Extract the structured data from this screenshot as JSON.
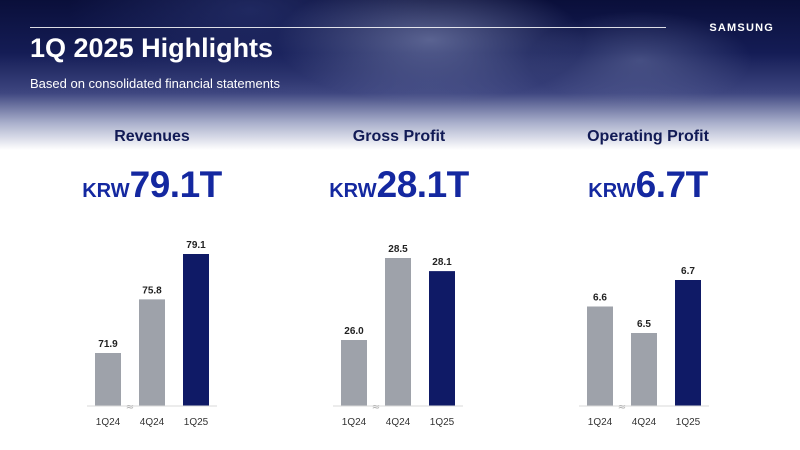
{
  "header": {
    "title": "1Q 2025 Highlights",
    "subtitle": "Based on consolidated financial statements",
    "logo": "SAMSUNG"
  },
  "colors": {
    "past_bar": "#9ea2aa",
    "current_bar": "#0f1a66",
    "headline": "#1428a0"
  },
  "chart_data": [
    {
      "type": "bar",
      "title": "Revenues",
      "headline_currency": "KRW",
      "headline_value": "79.1T",
      "categories": [
        "1Q24",
        "4Q24",
        "1Q25"
      ],
      "values": [
        71.9,
        75.8,
        79.1
      ],
      "value_labels": [
        "71.9",
        "75.8",
        "79.1"
      ],
      "axis_break_after_index": 0,
      "highlight_index": 2
    },
    {
      "type": "bar",
      "title": "Gross Profit",
      "headline_currency": "KRW",
      "headline_value": "28.1T",
      "categories": [
        "1Q24",
        "4Q24",
        "1Q25"
      ],
      "values": [
        26.0,
        28.5,
        28.1
      ],
      "value_labels": [
        "26.0",
        "28.5",
        "28.1"
      ],
      "axis_break_after_index": 0,
      "highlight_index": 2
    },
    {
      "type": "bar",
      "title": "Operating  Profit",
      "headline_currency": "KRW",
      "headline_value": "6.7T",
      "categories": [
        "1Q24",
        "4Q24",
        "1Q25"
      ],
      "values": [
        6.6,
        6.5,
        6.7
      ],
      "value_labels": [
        "6.6",
        "6.5",
        "6.7"
      ],
      "axis_break_after_index": 0,
      "highlight_index": 2
    }
  ]
}
